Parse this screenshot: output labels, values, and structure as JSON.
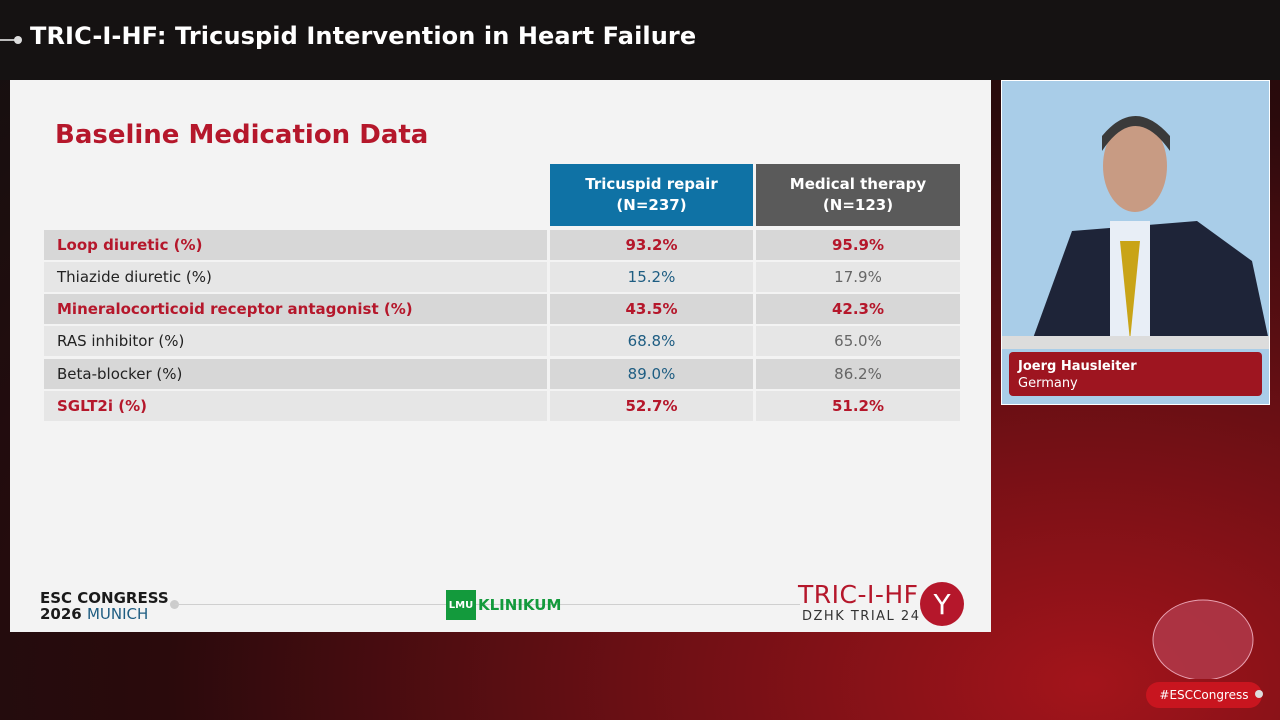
{
  "header": {
    "title": "TRIC-I-HF: Tricuspid Intervention in Heart Failure"
  },
  "slide": {
    "title": "Baseline Medication Data",
    "columns": [
      {
        "line1": "Tricuspid repair",
        "line2": "(N=237)"
      },
      {
        "line1": "Medical therapy",
        "line2": "(N=123)"
      }
    ],
    "rows": [
      {
        "label": "Loop diuretic (%)",
        "repair": "93.2%",
        "medical": "95.9%"
      },
      {
        "label": "Thiazide diuretic (%)",
        "repair": "15.2%",
        "medical": "17.9%"
      },
      {
        "label": "Mineralocorticoid receptor antagonist (%)",
        "repair": "43.5%",
        "medical": "42.3%"
      },
      {
        "label": "RAS inhibitor (%)",
        "repair": "68.8%",
        "medical": "65.0%"
      },
      {
        "label": "Beta-blocker (%)",
        "repair": "89.0%",
        "medical": "86.2%"
      },
      {
        "label": "SGLT2i (%)",
        "repair": "52.7%",
        "medical": "51.2%"
      }
    ],
    "footer": {
      "esc_line1": "ESC CONGRESS",
      "esc_year": "2026",
      "esc_city": "MUNICH",
      "lmu_mark": "LMU",
      "lmu_text": "KLINIKUM",
      "trial_name": "TRIC-I-HF",
      "trial_sub": "DZHK TRIAL 24"
    }
  },
  "speaker": {
    "name": "Joerg Hausleiter",
    "country": "Germany"
  },
  "hashtag": "#ESCCongress",
  "colors": {
    "accent_red": "#b5172b",
    "repair_blue": "#0f72a5",
    "medical_gray": "#5a5a5a"
  }
}
